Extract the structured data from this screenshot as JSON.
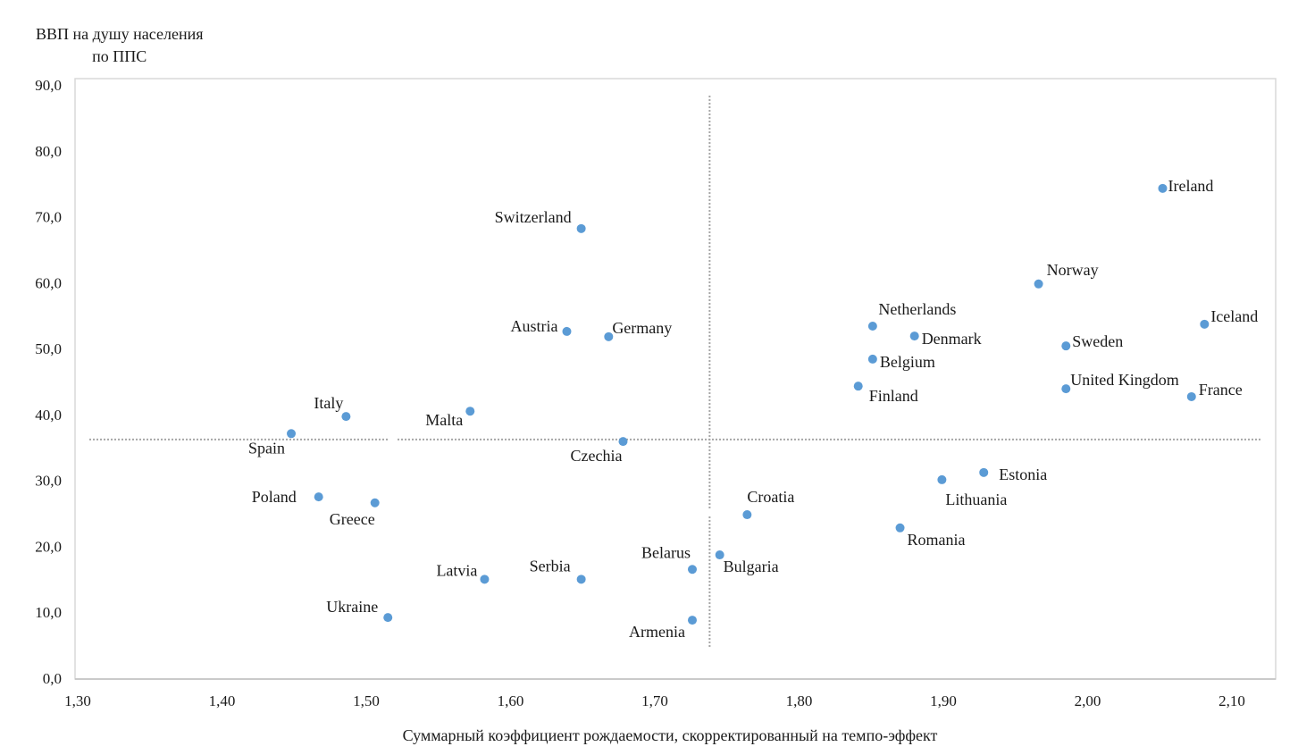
{
  "chart_data": {
    "type": "scatter",
    "title": "",
    "ylabel_lines": [
      "ВВП на душу населения",
      "по ППС"
    ],
    "xlabel": "Суммарный коэффициент рождаемости, скорректированный на темпо-эффект",
    "xlim": [
      1.3,
      2.1
    ],
    "ylim": [
      0.0,
      90.0
    ],
    "x_ticks": [
      "1,30",
      "1,40",
      "1,50",
      "1,60",
      "1,70",
      "1,80",
      "1,90",
      "2,00",
      "2,10"
    ],
    "y_ticks": [
      "0,0",
      "10,0",
      "20,0",
      "30,0",
      "40,0",
      "50,0",
      "60,0",
      "70,0",
      "80,0",
      "90,0"
    ],
    "grid": false,
    "reference_lines": {
      "x": 1.738,
      "y": 36.2
    },
    "point_color": "#5b9bd5",
    "points": [
      {
        "label": "Ireland",
        "x": 2.052,
        "y": 74.3
      },
      {
        "label": "Norway",
        "x": 1.966,
        "y": 59.8
      },
      {
        "label": "Iceland",
        "x": 2.081,
        "y": 53.7
      },
      {
        "label": "Netherlands",
        "x": 1.851,
        "y": 53.4
      },
      {
        "label": "Denmark",
        "x": 1.88,
        "y": 51.9
      },
      {
        "label": "Sweden",
        "x": 1.985,
        "y": 50.4
      },
      {
        "label": "Belgium",
        "x": 1.851,
        "y": 48.4
      },
      {
        "label": "Finland",
        "x": 1.841,
        "y": 44.3
      },
      {
        "label": "United Kingdom",
        "x": 1.985,
        "y": 43.9
      },
      {
        "label": "France",
        "x": 2.072,
        "y": 42.7
      },
      {
        "label": "Switzerland",
        "x": 1.649,
        "y": 68.2
      },
      {
        "label": "Austria",
        "x": 1.639,
        "y": 52.6
      },
      {
        "label": "Germany",
        "x": 1.668,
        "y": 51.8
      },
      {
        "label": "Malta",
        "x": 1.572,
        "y": 40.5
      },
      {
        "label": "Italy",
        "x": 1.486,
        "y": 39.7
      },
      {
        "label": "Spain",
        "x": 1.448,
        "y": 37.1
      },
      {
        "label": "Czechia",
        "x": 1.678,
        "y": 35.9
      },
      {
        "label": "Poland",
        "x": 1.467,
        "y": 27.5
      },
      {
        "label": "Greece",
        "x": 1.506,
        "y": 26.6
      },
      {
        "label": "Croatia",
        "x": 1.764,
        "y": 24.8
      },
      {
        "label": "Estonia",
        "x": 1.928,
        "y": 31.2
      },
      {
        "label": "Lithuania",
        "x": 1.899,
        "y": 30.1
      },
      {
        "label": "Romania",
        "x": 1.87,
        "y": 22.8
      },
      {
        "label": "Bulgaria",
        "x": 1.745,
        "y": 18.7
      },
      {
        "label": "Belarus",
        "x": 1.726,
        "y": 16.5
      },
      {
        "label": "Serbia",
        "x": 1.649,
        "y": 15.0
      },
      {
        "label": "Latvia",
        "x": 1.582,
        "y": 15.0
      },
      {
        "label": "Ukraine",
        "x": 1.515,
        "y": 9.2
      },
      {
        "label": "Armenia",
        "x": 1.726,
        "y": 8.8
      }
    ]
  }
}
